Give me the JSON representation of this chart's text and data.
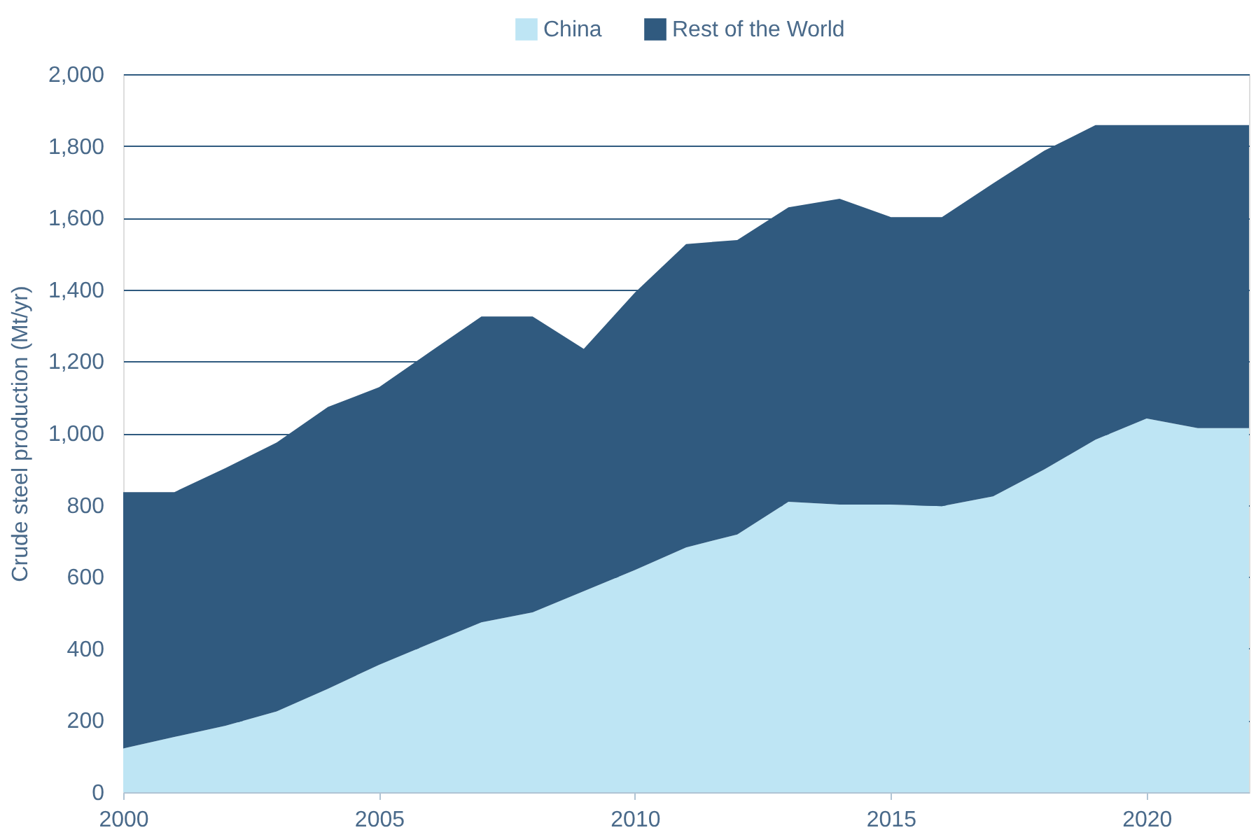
{
  "chart_data": {
    "type": "area",
    "stacked": true,
    "ylabel": "Crude steel production (Mt/yr)",
    "x": [
      2000,
      2001,
      2002,
      2003,
      2004,
      2005,
      2006,
      2007,
      2008,
      2009,
      2010,
      2011,
      2012,
      2013,
      2014,
      2015,
      2016,
      2017,
      2018,
      2019,
      2020,
      2021,
      2022
    ],
    "series": [
      {
        "name": "China",
        "color": "#bee5f4",
        "values": [
          122,
          154,
          185,
          225,
          288,
          355,
          414,
          473,
          501,
          560,
          619,
          682,
          718,
          809,
          801,
          801,
          797,
          824,
          899,
          982,
          1041,
          1014,
          1014
        ]
      },
      {
        "name": "Rest of the World",
        "color": "#305a7f",
        "values": [
          714,
          682,
          718,
          749,
          785,
          773,
          813,
          852,
          824,
          675,
          773,
          845,
          820,
          820,
          852,
          801,
          805,
          872,
          888,
          876,
          817,
          844,
          844
        ]
      }
    ],
    "xlim": [
      2000,
      2022
    ],
    "xticks": [
      2000,
      2005,
      2010,
      2015,
      2020
    ],
    "ylim": [
      0,
      2000
    ],
    "yticks": [
      0,
      200,
      400,
      600,
      800,
      {
        "value": 1000,
        "label": "1,000"
      },
      {
        "value": 1200,
        "label": "1,200"
      },
      {
        "value": 1400,
        "label": "1,400"
      },
      {
        "value": 1600,
        "label": "1,600"
      },
      {
        "value": 1800,
        "label": "1,800"
      },
      {
        "value": 2000,
        "label": "2,000"
      }
    ],
    "grid": "y",
    "legend": "top"
  }
}
